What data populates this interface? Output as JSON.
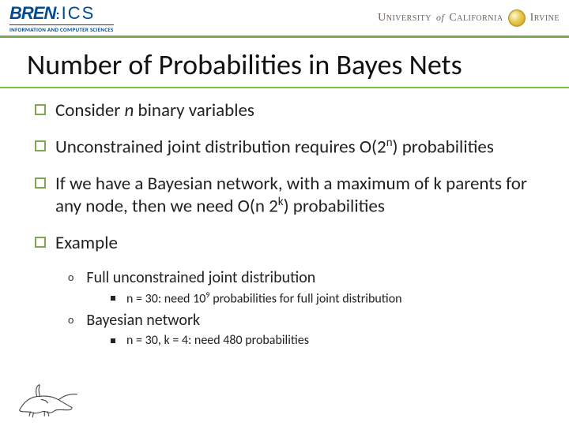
{
  "header": {
    "logo_bren": "BREN",
    "logo_ics": "ICS",
    "logo_sub": "INFORMATION AND COMPUTER SCIENCES",
    "uni_part1": "University",
    "uni_of": "of",
    "uni_part2": "California",
    "uni_part3": "Irvine",
    "border_color": "#7fa650",
    "bren_color": "#004b8d"
  },
  "title": {
    "text": "Number of Probabilities in Bayes Nets",
    "fontsize": 36,
    "underline_color": "#7ac142"
  },
  "colors": {
    "bullet_box": "#7fa650",
    "text": "#222222",
    "background": "#ffffff"
  },
  "bullets": [
    {
      "html": "Consider <span class='ital'>n</span> binary variables"
    },
    {
      "html": "Unconstrained joint distribution requires O(2<sup>n</sup>) probabilities"
    },
    {
      "html": "If we have a Bayesian network, with a maximum of k parents for any node, then we need O(n 2<sup>k</sup>) probabilities"
    },
    {
      "html": "Example",
      "children": [
        {
          "html": "Full unconstrained joint distribution",
          "children": [
            {
              "html": "n = 30:  need 10<sup>9</sup> probabilities for full joint distribution"
            }
          ]
        },
        {
          "html": "Bayesian network",
          "children": [
            {
              "html": "n = 30, k = 4:  need 480 probabilities"
            }
          ]
        }
      ]
    }
  ]
}
